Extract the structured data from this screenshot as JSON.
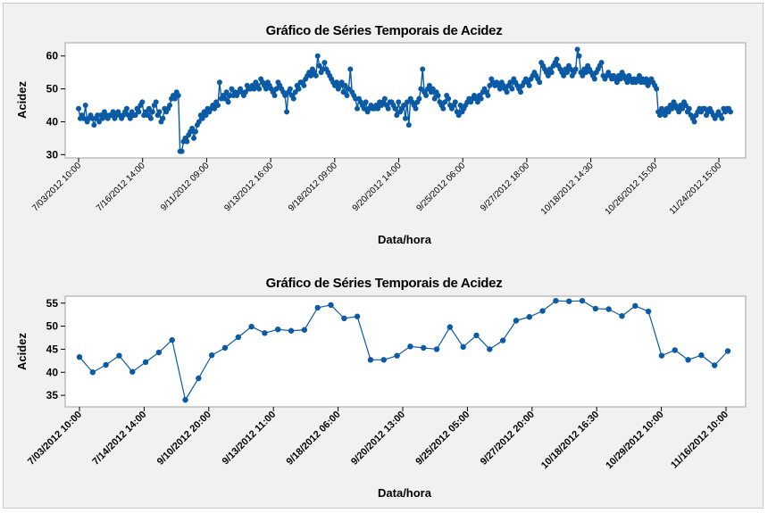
{
  "colors": {
    "series": "#0a5aa6",
    "background": "#f1f1f1",
    "plot_area": "#ffffff"
  },
  "chart_data": [
    {
      "type": "line",
      "title": "Gráfico de Séries Temporais de Acidez",
      "xlabel": "Data/hora",
      "ylabel": "Acidez",
      "ylim": [
        29,
        64
      ],
      "yticks": [
        30,
        40,
        50,
        60
      ],
      "xtick_labels": [
        "7/03/2012 10:00",
        "7/16/2012 14:00",
        "9/11/2012 09:00",
        "9/13/2012 16:00",
        "9/18/2012 09:00",
        "9/20/2012 14:00",
        "9/25/2012 06:00",
        "9/27/2012 18:00",
        "10/18/2012 14:30",
        "10/26/2012 15:00",
        "11/24/2012 15:00"
      ],
      "grid": false,
      "legend": "none",
      "series": [
        {
          "values": [
            44,
            41,
            42,
            41,
            45,
            40,
            41,
            42,
            41,
            39,
            41,
            42,
            40,
            42,
            41,
            43,
            42,
            41,
            42,
            42,
            43,
            41,
            42,
            43,
            42,
            41,
            42,
            43,
            44,
            42,
            41,
            43,
            42,
            42,
            44,
            43,
            45,
            46,
            42,
            43,
            42,
            44,
            41,
            43,
            45,
            46,
            42,
            43,
            40,
            41,
            44,
            43,
            44,
            45,
            47,
            48,
            47,
            49,
            48,
            31,
            31,
            34,
            35,
            34,
            36,
            37,
            38,
            35,
            37,
            39,
            40,
            42,
            41,
            43,
            42,
            44,
            43,
            44,
            45,
            44,
            46,
            45,
            52,
            47,
            48,
            47,
            49,
            46,
            48,
            50,
            48,
            49,
            48,
            49,
            50,
            49,
            48,
            49,
            51,
            50,
            50,
            51,
            50,
            52,
            51,
            50,
            53,
            52,
            51,
            50,
            52,
            51,
            50,
            49,
            48,
            50,
            52,
            51,
            50,
            49,
            48,
            43,
            49,
            50,
            48,
            47,
            49,
            51,
            50,
            52,
            52,
            51,
            53,
            54,
            55,
            54,
            56,
            55,
            54,
            60,
            57,
            55,
            56,
            58,
            56,
            55,
            54,
            53,
            52,
            51,
            52,
            50,
            51,
            52,
            49,
            51,
            48,
            50,
            56,
            49,
            48,
            47,
            44,
            47,
            46,
            45,
            44,
            46,
            43,
            44,
            45,
            44,
            44,
            45,
            44,
            46,
            45,
            46,
            47,
            45,
            44,
            46,
            46,
            45,
            44,
            42,
            46,
            43,
            44,
            45,
            41,
            46,
            39,
            47,
            46,
            45,
            44,
            46,
            47,
            50,
            56,
            49,
            48,
            50,
            51,
            49,
            50,
            47,
            49,
            48,
            46,
            45,
            44,
            46,
            48,
            47,
            45,
            44,
            45,
            46,
            43,
            42,
            45,
            43,
            44,
            45,
            46,
            47,
            46,
            47,
            48,
            47,
            46,
            48,
            47,
            49,
            50,
            49,
            48,
            51,
            53,
            52,
            51,
            52,
            51,
            50,
            52,
            51,
            50,
            49,
            51,
            52,
            50,
            53,
            52,
            51,
            50,
            49,
            51,
            52,
            53,
            52,
            51,
            53,
            54,
            55,
            54,
            53,
            52,
            58,
            57,
            56,
            55,
            54,
            56,
            55,
            57,
            58,
            59,
            57,
            56,
            55,
            54,
            56,
            55,
            57,
            56,
            54,
            55,
            56,
            62,
            60,
            55,
            54,
            56,
            55,
            57,
            56,
            55,
            54,
            53,
            55,
            56,
            57,
            58,
            54,
            53,
            54,
            55,
            54,
            53,
            54,
            53,
            52,
            54,
            53,
            55,
            54,
            53,
            52,
            54,
            53,
            52,
            53,
            52,
            53,
            54,
            52,
            53,
            52,
            53,
            51,
            52,
            53,
            52,
            51,
            50,
            43,
            42,
            44,
            43,
            42,
            44,
            43,
            45,
            44,
            46,
            45,
            44,
            43,
            45,
            44,
            46,
            45,
            43,
            44,
            42,
            41,
            40,
            42,
            43,
            44,
            43,
            44,
            44,
            42,
            43,
            44,
            43,
            42,
            41,
            42,
            43,
            42,
            41,
            44,
            43,
            44,
            44,
            43
          ]
        }
      ]
    },
    {
      "type": "line",
      "title": "Gráfico de Séries Temporais de Acidez",
      "xlabel": "Data/hora",
      "ylabel": "Acidez",
      "ylim": [
        32.5,
        56.5
      ],
      "yticks": [
        35,
        40,
        45,
        50,
        55
      ],
      "xtick_labels": [
        "7/03/2012 10:00",
        "7/14/2012 14:00",
        "9/10/2012 20:00",
        "9/13/2012 11:00",
        "9/18/2012 06:00",
        "9/20/2012 13:00",
        "9/25/2012 05:00",
        "9/27/2012 20:00",
        "10/18/2012 16:30",
        "10/29/2012 10:00",
        "11/16/2012 10:00"
      ],
      "grid": false,
      "legend": "none",
      "series": [
        {
          "values": [
            43.3,
            40.0,
            41.6,
            43.6,
            40.1,
            42.2,
            44.3,
            47.0,
            34.0,
            38.7,
            43.7,
            45.3,
            47.6,
            49.9,
            48.5,
            49.3,
            49.0,
            49.2,
            54.0,
            54.6,
            51.7,
            52.1,
            42.7,
            42.7,
            43.6,
            45.6,
            45.3,
            45.0,
            49.8,
            45.5,
            48.0,
            45.0,
            46.9,
            51.2,
            52.0,
            53.3,
            55.5,
            55.4,
            55.5,
            53.8,
            53.7,
            52.2,
            54.4,
            53.2,
            43.6,
            44.8,
            42.7,
            43.7,
            41.5,
            44.6
          ]
        }
      ]
    }
  ]
}
